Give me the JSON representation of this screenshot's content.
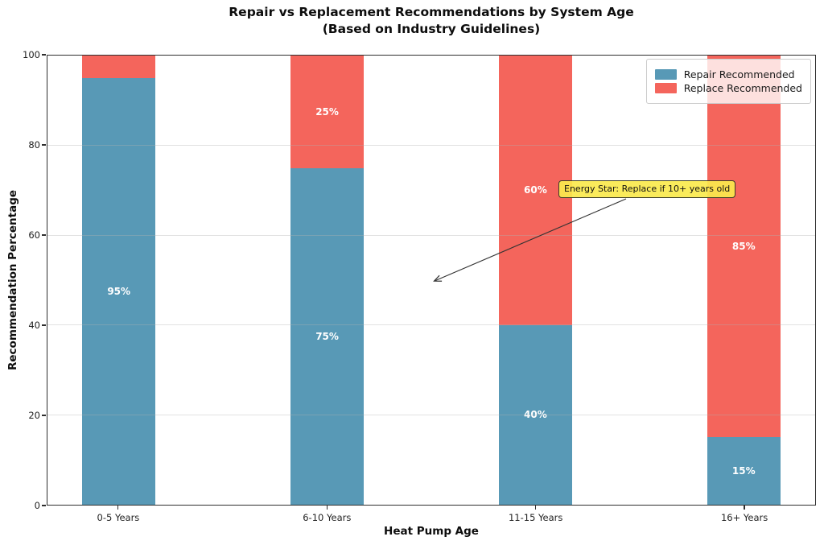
{
  "title": "Repair vs Replacement Recommendations by System Age",
  "subtitle": "(Based on Industry Guidelines)",
  "chart_data": {
    "type": "bar",
    "stacked": true,
    "categories": [
      "0-5 Years",
      "6-10 Years",
      "11-15 Years",
      "16+ Years"
    ],
    "series": [
      {
        "name": "Repair Recommended",
        "values": [
          95,
          75,
          40,
          15
        ],
        "color": "#5899B6"
      },
      {
        "name": "Replace Recommended",
        "values": [
          5,
          25,
          60,
          85
        ],
        "color": "#F4655C"
      }
    ],
    "bar_value_labels": [
      [
        "95%",
        "75%",
        "40%",
        "15%"
      ],
      [
        null,
        "25%",
        "60%",
        "85%"
      ]
    ],
    "xlabel": "Heat Pump Age",
    "ylabel": "Recommendation Percentage",
    "ylim": [
      0,
      100
    ],
    "yticks": [
      0,
      20,
      40,
      60,
      80,
      100
    ],
    "grid": "y",
    "legend_position": "upper right",
    "annotation": {
      "text": "Energy Star: Replace if 10+ years old",
      "bg_color": "#FAE94D",
      "border_color": "#3C3C28"
    }
  }
}
